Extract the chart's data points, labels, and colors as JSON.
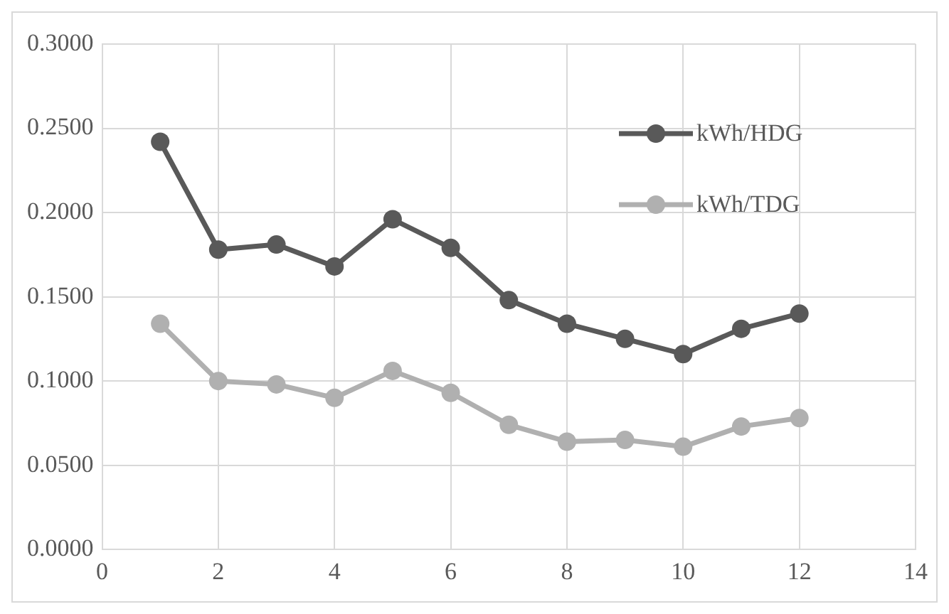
{
  "chart_data": {
    "type": "line",
    "x": [
      1,
      2,
      3,
      4,
      5,
      6,
      7,
      8,
      9,
      10,
      11,
      12
    ],
    "series": [
      {
        "name": "kWh/HDG",
        "color": "#595959",
        "values": [
          0.242,
          0.178,
          0.181,
          0.168,
          0.196,
          0.179,
          0.148,
          0.134,
          0.125,
          0.116,
          0.131,
          0.14
        ]
      },
      {
        "name": "kWh/TDG",
        "color": "#b0b0b0",
        "values": [
          0.134,
          0.1,
          0.098,
          0.09,
          0.106,
          0.093,
          0.074,
          0.064,
          0.065,
          0.061,
          0.073,
          0.078
        ]
      }
    ],
    "xlim": [
      0,
      14
    ],
    "xticks": [
      0,
      2,
      4,
      6,
      8,
      10,
      12,
      14
    ],
    "ylim": [
      0,
      0.3
    ],
    "yticks": [
      {
        "value": 0,
        "label": "0.0000"
      },
      {
        "value": 0.05,
        "label": "0.0500"
      },
      {
        "value": 0.1,
        "label": "0.1000"
      },
      {
        "value": 0.15,
        "label": "0.1500"
      },
      {
        "value": 0.2,
        "label": "0.2000"
      },
      {
        "value": 0.25,
        "label": "0.2500"
      },
      {
        "value": 0.3,
        "label": "0.3000"
      }
    ],
    "grid": true,
    "legend": "top right",
    "marker": "circle",
    "line_style": "solid"
  }
}
